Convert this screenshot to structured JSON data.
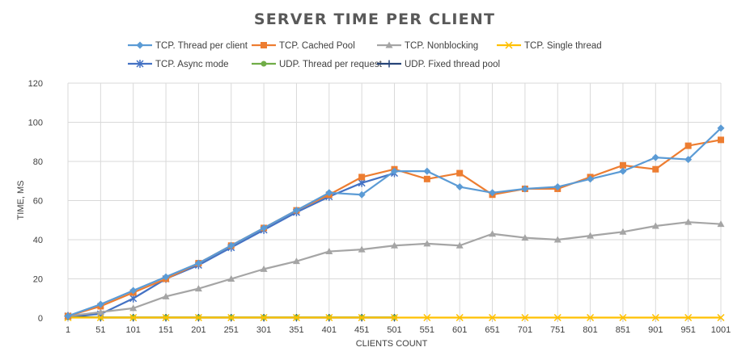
{
  "chart_data": {
    "type": "line",
    "title": "SERVER TIME PER CLIENT",
    "xlabel": "CLIENTS COUNT",
    "ylabel": "TIME, MS",
    "categories": [
      "1",
      "51",
      "101",
      "151",
      "201",
      "251",
      "301",
      "351",
      "401",
      "451",
      "501",
      "551",
      "601",
      "651",
      "701",
      "751",
      "801",
      "851",
      "901",
      "951",
      "1001"
    ],
    "ylim": [
      0,
      120
    ],
    "yticks": [
      0,
      20,
      40,
      60,
      80,
      100,
      120
    ],
    "grid": true,
    "legend_position": "top",
    "series": [
      {
        "name": "TCP. Thread per client",
        "color": "#5b9bd5",
        "marker": "diamond",
        "values": [
          1,
          7,
          14,
          21,
          28,
          37,
          46,
          55,
          64,
          63,
          75,
          75,
          67,
          64,
          66,
          67,
          71,
          75,
          82,
          81,
          97
        ]
      },
      {
        "name": "TCP. Cached Pool",
        "color": "#ed7d31",
        "marker": "square",
        "values": [
          1,
          6,
          13,
          20,
          28,
          37,
          46,
          55,
          63,
          72,
          76,
          71,
          74,
          63,
          66,
          66,
          72,
          78,
          76,
          88,
          91
        ]
      },
      {
        "name": "TCP. Nonblocking",
        "color": "#a5a5a5",
        "marker": "triangle",
        "values": [
          1,
          3,
          5,
          11,
          15,
          20,
          25,
          29,
          34,
          35,
          37,
          38,
          37,
          43,
          41,
          40,
          42,
          44,
          47,
          49,
          48
        ]
      },
      {
        "name": "TCP. Single thread",
        "color": "#ffc000",
        "marker": "x",
        "values": [
          0.2,
          0.2,
          0.2,
          0.2,
          0.2,
          0.2,
          0.2,
          0.2,
          0.2,
          0.2,
          0.2,
          0.2,
          0.2,
          0.2,
          0.2,
          0.2,
          0.2,
          0.2,
          0.2,
          0.2,
          0.2
        ]
      },
      {
        "name": "TCP. Async mode",
        "color": "#4472c4",
        "marker": "star",
        "values": [
          1,
          2,
          10,
          20,
          27,
          36,
          45,
          54,
          62,
          69,
          74,
          null,
          null,
          null,
          null,
          null,
          null,
          null,
          null,
          null,
          null
        ]
      },
      {
        "name": "UDP. Thread per request",
        "color": "#70ad47",
        "marker": "circle",
        "values": [
          0.3,
          0.3,
          0.3,
          0.3,
          0.3,
          0.3,
          0.3,
          0.3,
          0.3,
          0.3,
          0.3,
          null,
          null,
          null,
          null,
          null,
          null,
          null,
          null,
          null,
          null
        ]
      },
      {
        "name": "UDP. Fixed thread pool",
        "color": "#264478",
        "marker": "plus",
        "values": [
          1,
          0.2,
          0.2,
          0.2,
          0.2,
          0.2,
          0.2,
          0.2,
          0.2,
          0.2,
          0.2,
          null,
          null,
          null,
          null,
          null,
          null,
          null,
          null,
          null,
          null
        ]
      }
    ]
  }
}
